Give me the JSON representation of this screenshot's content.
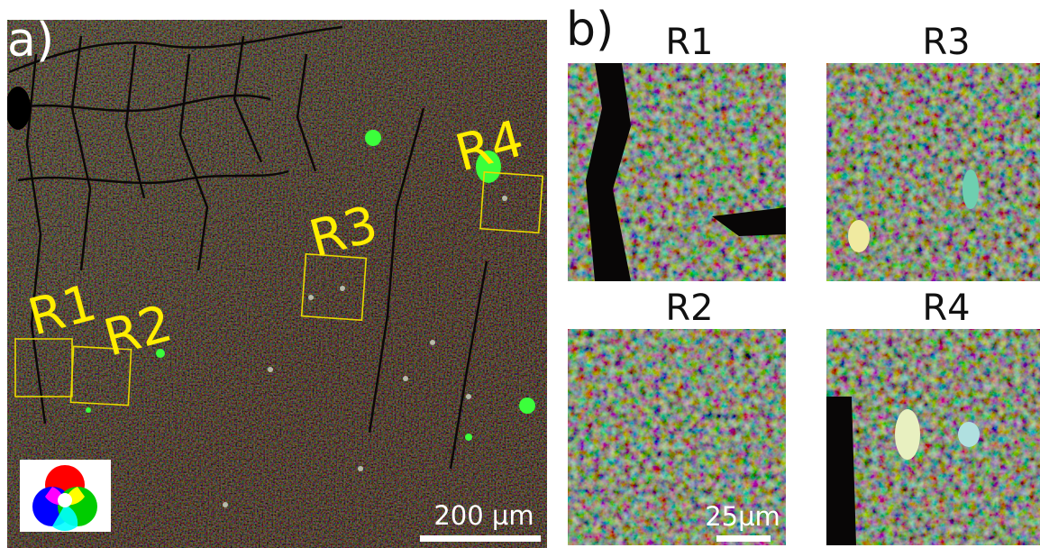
{
  "panel_a": {
    "label": "a)",
    "regions": [
      "R1",
      "R2",
      "R3",
      "R4"
    ],
    "scale_bar": "200 µm"
  },
  "panel_b": {
    "label": "b)",
    "insets": [
      "R1",
      "R3",
      "R2",
      "R4"
    ],
    "scale_bar": "25µm"
  }
}
